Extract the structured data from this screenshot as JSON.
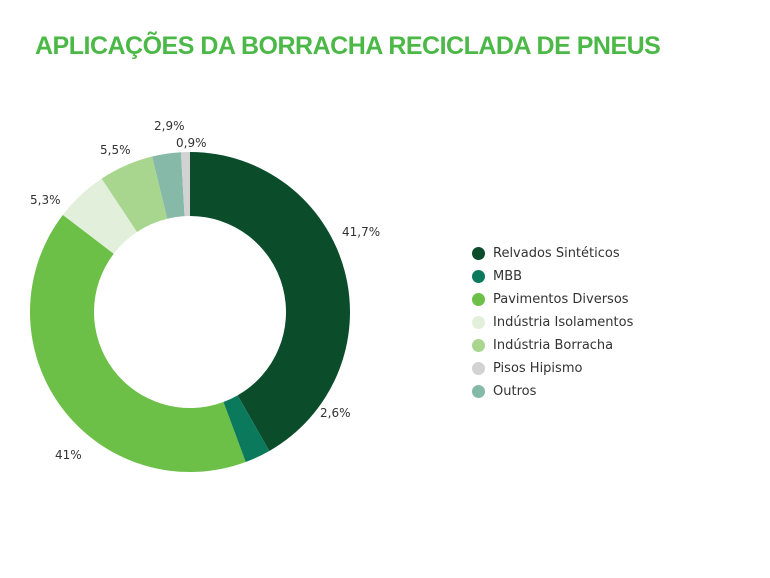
{
  "chart_data": {
    "type": "pie",
    "donut": true,
    "title": "APLICAÇÕES DA BORRACHA RECICLADA DE PNEUS",
    "categories": [
      "Relvados Sintéticos",
      "MBB",
      "Pavimentos Diversos",
      "Indústria Isolamentos",
      "Indústria Borracha",
      "Outros",
      "Pisos Hipismo"
    ],
    "values": [
      41.7,
      2.6,
      41,
      5.3,
      5.5,
      2.9,
      0.9
    ],
    "data_labels": [
      "41,7%",
      "2,6%",
      "41%",
      "5,3%",
      "5,5%",
      "2,9%",
      "0,9%"
    ],
    "colors": [
      "#0b4d2b",
      "#0b7a5c",
      "#6cbf47",
      "#e1efdb",
      "#a9d68f",
      "#86b9a8",
      "#d2d2d2"
    ],
    "legend_position": "right",
    "legend": [
      {
        "label": "Relvados Sintéticos",
        "color": "#0b4d2b"
      },
      {
        "label": "MBB",
        "color": "#0b7a5c"
      },
      {
        "label": "Pavimentos Diversos",
        "color": "#6cbf47"
      },
      {
        "label": "Indústria Isolamentos",
        "color": "#e1efdb"
      },
      {
        "label": "Indústria Borracha",
        "color": "#a9d68f"
      },
      {
        "label": "Pisos Hipismo",
        "color": "#d2d2d2"
      },
      {
        "label": "Outros",
        "color": "#86b9a8"
      }
    ]
  }
}
